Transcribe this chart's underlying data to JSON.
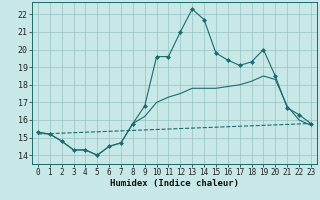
{
  "title": "",
  "xlabel": "Humidex (Indice chaleur)",
  "bg_color": "#c8e8e8",
  "line_color": "#1a6b6b",
  "grid_color": "#a0c8c8",
  "xlim": [
    -0.5,
    23.5
  ],
  "ylim": [
    13.5,
    22.7
  ],
  "xticks": [
    0,
    1,
    2,
    3,
    4,
    5,
    6,
    7,
    8,
    9,
    10,
    11,
    12,
    13,
    14,
    15,
    16,
    17,
    18,
    19,
    20,
    21,
    22,
    23
  ],
  "yticks": [
    14,
    15,
    16,
    17,
    18,
    19,
    20,
    21,
    22
  ],
  "line1_x": [
    0,
    1,
    2,
    3,
    4,
    5,
    6,
    7,
    8,
    9,
    10,
    11,
    12,
    13,
    14,
    15,
    16,
    17,
    18,
    19,
    20,
    21,
    22,
    23
  ],
  "line1_y": [
    15.3,
    15.2,
    14.8,
    14.3,
    14.3,
    14.0,
    14.5,
    14.7,
    15.8,
    16.8,
    19.6,
    19.6,
    21.0,
    22.3,
    21.7,
    19.8,
    19.4,
    19.1,
    19.3,
    20.0,
    18.5,
    16.7,
    16.3,
    15.8
  ],
  "line2_x": [
    0,
    1,
    2,
    3,
    4,
    5,
    6,
    7,
    8,
    9,
    10,
    11,
    12,
    13,
    14,
    15,
    16,
    17,
    18,
    19,
    20,
    21,
    22,
    23
  ],
  "line2_y": [
    15.3,
    15.2,
    14.8,
    14.3,
    14.3,
    14.0,
    14.5,
    14.7,
    15.8,
    16.2,
    17.0,
    17.3,
    17.5,
    17.8,
    17.8,
    17.8,
    17.9,
    18.0,
    18.2,
    18.5,
    18.3,
    16.8,
    16.0,
    15.7
  ],
  "line3_x": [
    0,
    23
  ],
  "line3_y": [
    15.2,
    15.8
  ],
  "xlabel_fontsize": 6.5,
  "tick_fontsize": 5.5
}
